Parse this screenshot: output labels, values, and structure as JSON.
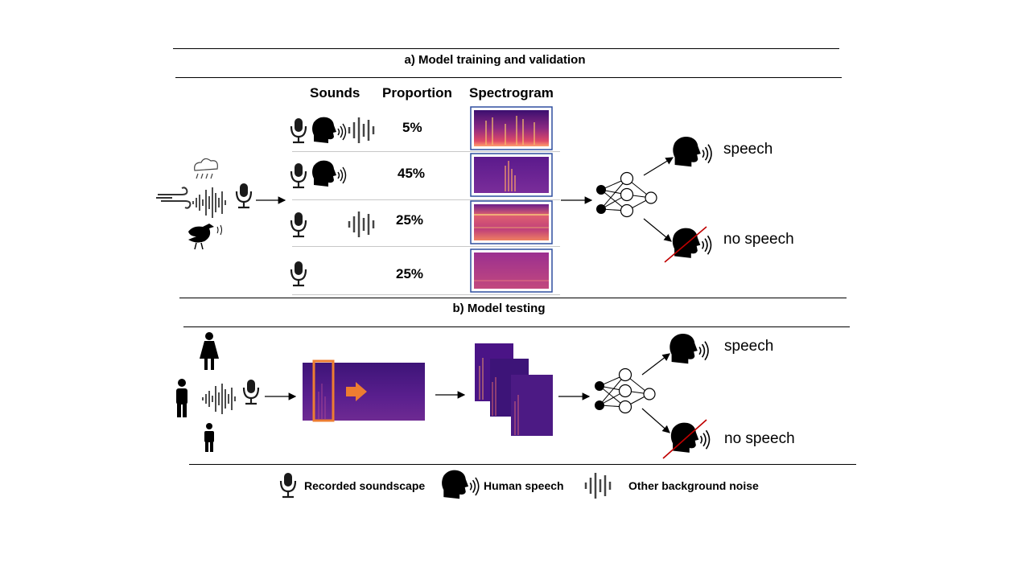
{
  "section_a": {
    "title": "a) Model training and validation",
    "columns": {
      "sounds": "Sounds",
      "proportion": "Proportion",
      "spectrogram": "Spectrogram"
    },
    "rows": [
      {
        "proportion": "5%",
        "sounds": [
          "microphone-icon",
          "speech-head-icon",
          "noise-bars-icon"
        ]
      },
      {
        "proportion": "45%",
        "sounds": [
          "microphone-icon",
          "speech-head-icon"
        ]
      },
      {
        "proportion": "25%",
        "sounds": [
          "microphone-icon",
          "noise-bars-icon"
        ]
      },
      {
        "proportion": "25%",
        "sounds": [
          "microphone-icon"
        ]
      }
    ],
    "outputs": {
      "speech": "speech",
      "no_speech": "no speech"
    }
  },
  "section_b": {
    "title": "b) Model testing",
    "outputs": {
      "speech": "speech",
      "no_speech": "no speech"
    }
  },
  "legend": {
    "recorded": "Recorded soundscape",
    "speech": "Human speech",
    "noise": "Other background noise"
  },
  "colors": {
    "highlight": "#ed7d31",
    "cross": "#c00000",
    "spectrogram": "#4a1486"
  }
}
